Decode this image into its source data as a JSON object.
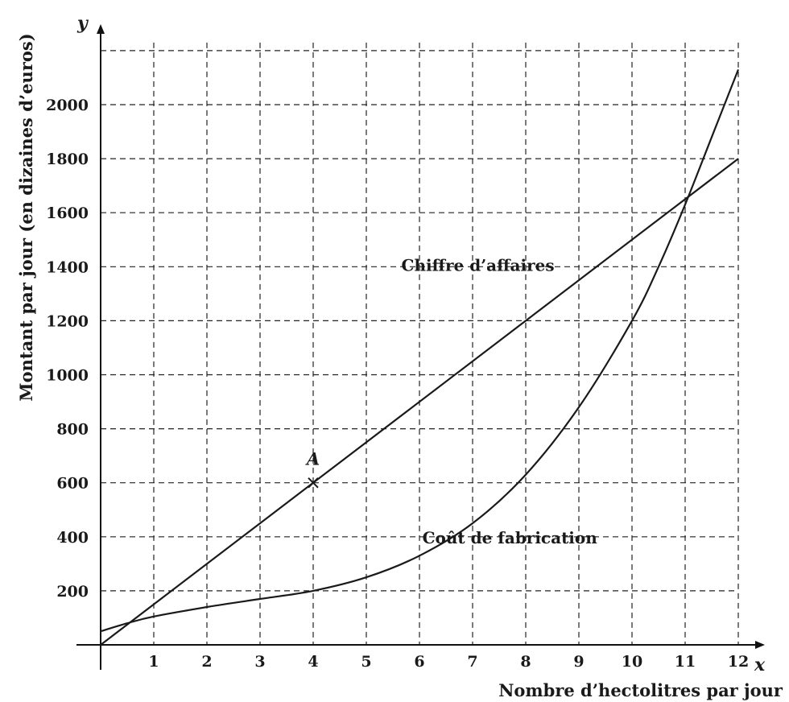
{
  "chart_data": {
    "type": "line",
    "title": "",
    "xlabel": "Nombre d’hectolitres par jour",
    "ylabel": "Montant par jour (en dizaines d’euros)",
    "x_axis_letter": "x",
    "y_axis_letter": "y",
    "xlim": [
      0,
      12
    ],
    "ylim": [
      0,
      2200
    ],
    "x_ticks": [
      1,
      2,
      3,
      4,
      5,
      6,
      7,
      8,
      9,
      10,
      11,
      12
    ],
    "y_ticks": [
      200,
      400,
      600,
      800,
      1000,
      1200,
      1400,
      1600,
      1800,
      2000
    ],
    "grid": true,
    "series": [
      {
        "name": "Chiffre d’affaires",
        "x": [
          0,
          12
        ],
        "y": [
          0,
          1800
        ]
      },
      {
        "name": "Coût de fabrication",
        "x": [
          0,
          0.5,
          1,
          2,
          3,
          4,
          5,
          6,
          7,
          8,
          9,
          10,
          10.5,
          11,
          11.5,
          12
        ],
        "y": [
          50,
          80,
          105,
          140,
          170,
          200,
          250,
          330,
          450,
          630,
          880,
          1200,
          1400,
          1630,
          1880,
          2130
        ]
      }
    ],
    "annotations": [
      {
        "label": "A",
        "x": 4,
        "y": 600
      }
    ]
  }
}
